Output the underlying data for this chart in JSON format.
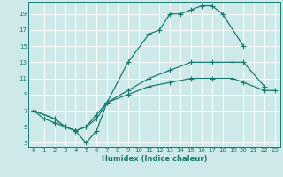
{
  "xlabel": "Humidex (Indice chaleur)",
  "bg_color": "#cee9ea",
  "grid_color": "#b0d4d6",
  "line_color": "#1a7a6e",
  "xlim": [
    -0.5,
    23.5
  ],
  "ylim": [
    2.5,
    20.5
  ],
  "xticks": [
    0,
    1,
    2,
    3,
    4,
    5,
    6,
    7,
    8,
    9,
    10,
    11,
    12,
    13,
    14,
    15,
    16,
    17,
    18,
    19,
    20,
    21,
    22,
    23
  ],
  "yticks": [
    3,
    5,
    7,
    9,
    11,
    13,
    15,
    17,
    19
  ],
  "curve1_x": [
    0,
    1,
    2,
    3,
    4,
    5,
    6,
    7,
    9,
    11,
    12,
    13,
    14,
    15,
    16,
    17,
    18,
    20
  ],
  "curve1_y": [
    7,
    6,
    5.5,
    5,
    4.5,
    3,
    4.5,
    8,
    13,
    16.5,
    17,
    19,
    19,
    19.5,
    20,
    20,
    19,
    15
  ],
  "curve2_x": [
    0,
    2,
    3,
    4,
    5,
    6,
    7,
    9,
    11,
    13,
    15,
    17,
    19,
    20,
    22
  ],
  "curve2_y": [
    7,
    6,
    5,
    4.5,
    5,
    6.5,
    8,
    9.5,
    11,
    12,
    13,
    13,
    13,
    13,
    10
  ],
  "curve3_x": [
    0,
    2,
    3,
    4,
    5,
    6,
    7,
    9,
    11,
    13,
    15,
    17,
    19,
    20,
    22,
    23
  ],
  "curve3_y": [
    7,
    6,
    5,
    4.5,
    5,
    6,
    8,
    9,
    10,
    10.5,
    11,
    11,
    11,
    10.5,
    9.5,
    9.5
  ]
}
